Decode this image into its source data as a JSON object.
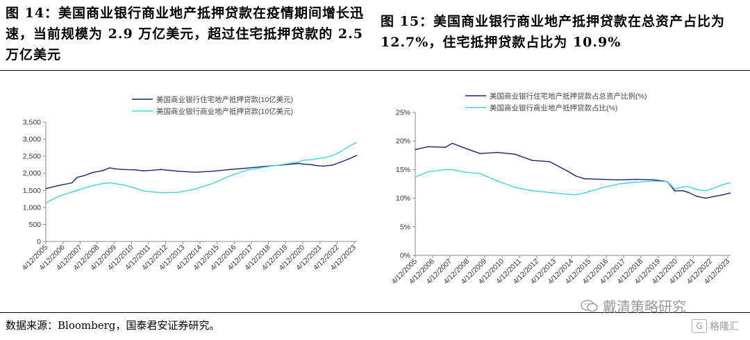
{
  "titles": {
    "left": "图 14：美国商业银行商业地产抵押贷款在疫情期间增长迅速，当前规模为 2.9 万亿美元，超过住宅抵押贷款的 2.5 万亿美元",
    "right": "图 15：美国商业银行商业地产抵押贷款在总资产占比为 12.7%，住宅抵押贷款占比为 10.9%"
  },
  "source": "数据来源：Bloomberg，国泰君安证券研究。",
  "watermark": {
    "text": "戴清策略研究",
    "icon": "wechat-icon"
  },
  "brand": {
    "text": "格隆汇",
    "icon": "gelonghui-logo-icon"
  },
  "colors": {
    "navy": "#1f1f7a",
    "cyan": "#3fd3ea"
  },
  "x_ticks": [
    "4/12/2005",
    "4/12/2006",
    "4/12/2007",
    "4/12/2008",
    "4/12/2009",
    "4/12/2010",
    "4/12/2011",
    "4/12/2012",
    "4/12/2013",
    "4/12/2014",
    "4/12/2015",
    "4/12/2016",
    "4/12/2017",
    "4/12/2018",
    "4/12/2019",
    "4/12/2020",
    "4/12/2021",
    "4/12/2022",
    "4/12/2023"
  ],
  "chart_data": [
    {
      "type": "line",
      "title": "",
      "xlabel": "",
      "ylabel": "",
      "ylim": [
        0,
        3500
      ],
      "yticks": [
        "0",
        "500",
        "1,000",
        "1,500",
        "2,000",
        "2,500",
        "3,000",
        "3,500"
      ],
      "ytick_values": [
        0,
        500,
        1000,
        1500,
        2000,
        2500,
        3000,
        3500
      ],
      "legend_position": "top-center",
      "x": [
        2005.27,
        2006,
        2006.8,
        2007.1,
        2007.5,
        2008,
        2008.6,
        2009,
        2009.3,
        2009.8,
        2010.5,
        2011,
        2012,
        2013,
        2014,
        2015,
        2016,
        2017,
        2018,
        2019,
        2020,
        2020.3,
        2020.8,
        2021,
        2021.5,
        2022,
        2022.5,
        2023,
        2023.4
      ],
      "series": [
        {
          "name": "美国商业银行住宅地产抵押贷款(10亿美元)",
          "color": "#1f1f7a",
          "values": [
            1550,
            1640,
            1720,
            1880,
            1930,
            2020,
            2080,
            2160,
            2130,
            2110,
            2100,
            2070,
            2110,
            2060,
            2030,
            2060,
            2110,
            2150,
            2200,
            2240,
            2290,
            2270,
            2250,
            2230,
            2210,
            2240,
            2330,
            2430,
            2520
          ]
        },
        {
          "name": "美国商业银行商业地产抵押贷款(10亿美元)",
          "color": "#3fd3ea",
          "values": [
            1130,
            1320,
            1450,
            1500,
            1560,
            1640,
            1700,
            1720,
            1700,
            1660,
            1560,
            1480,
            1430,
            1440,
            1540,
            1700,
            1920,
            2090,
            2180,
            2250,
            2330,
            2380,
            2400,
            2420,
            2450,
            2520,
            2640,
            2800,
            2900
          ]
        }
      ]
    },
    {
      "type": "line",
      "title": "",
      "xlabel": "",
      "ylabel": "",
      "ylim": [
        0,
        25
      ],
      "yticks": [
        "0%",
        "5%",
        "10%",
        "15%",
        "20%",
        "25%"
      ],
      "ytick_values": [
        0,
        5,
        10,
        15,
        20,
        25
      ],
      "legend_position": "top-center",
      "x": [
        2005.27,
        2006,
        2007,
        2007.4,
        2008,
        2009,
        2010,
        2011,
        2012,
        2013,
        2014,
        2014.5,
        2015,
        2016,
        2017,
        2018,
        2019,
        2019.8,
        2020.2,
        2020.7,
        2021,
        2021.5,
        2022,
        2022.5,
        2023,
        2023.4
      ],
      "series": [
        {
          "name": "美国商业银行住宅地产抵押贷款占总资产比例(%)",
          "color": "#1f1f7a",
          "values": [
            18.5,
            19.0,
            18.9,
            19.6,
            18.9,
            17.8,
            18.0,
            17.7,
            16.6,
            16.4,
            14.8,
            13.9,
            13.4,
            13.3,
            13.2,
            13.3,
            13.2,
            12.9,
            11.3,
            11.3,
            11.0,
            10.3,
            10.0,
            10.3,
            10.6,
            10.9
          ]
        },
        {
          "name": "美国商业银行商业地产抵押贷款占比(%)",
          "color": "#3fd3ea",
          "values": [
            13.7,
            14.6,
            15.0,
            15.0,
            14.6,
            14.3,
            13.0,
            11.9,
            11.3,
            11.0,
            10.7,
            10.6,
            10.9,
            11.8,
            12.5,
            12.8,
            13.0,
            12.9,
            11.6,
            12.0,
            12.0,
            11.5,
            11.3,
            11.8,
            12.4,
            12.7
          ]
        }
      ]
    }
  ]
}
